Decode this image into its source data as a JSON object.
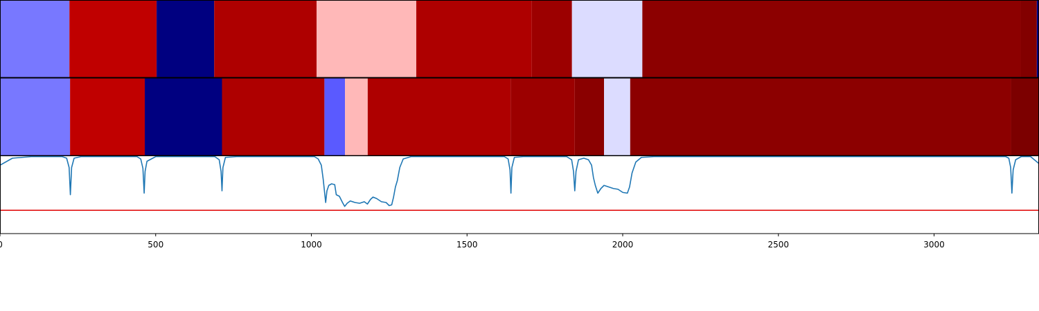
{
  "chart_data": [
    {
      "type": "heatmap",
      "name": "segmentation-track-1",
      "segments": [
        {
          "start": 0,
          "end": 223,
          "color": "#7878ff"
        },
        {
          "start": 223,
          "end": 503,
          "color": "#c00000"
        },
        {
          "start": 503,
          "end": 688,
          "color": "#000080"
        },
        {
          "start": 688,
          "end": 1017,
          "color": "#ae0000"
        },
        {
          "start": 1017,
          "end": 1337,
          "color": "#ffb8b8"
        },
        {
          "start": 1337,
          "end": 1708,
          "color": "#ae0000"
        },
        {
          "start": 1708,
          "end": 1837,
          "color": "#9c0000"
        },
        {
          "start": 1837,
          "end": 2063,
          "color": "#dcdcff"
        },
        {
          "start": 2063,
          "end": 3278,
          "color": "#8c0000"
        },
        {
          "start": 3278,
          "end": 3330,
          "color": "#820000"
        },
        {
          "start": 3330,
          "end": 3337,
          "color": "#000080"
        }
      ]
    },
    {
      "type": "heatmap",
      "name": "segmentation-track-2",
      "segments": [
        {
          "start": 0,
          "end": 225,
          "color": "#7878ff"
        },
        {
          "start": 225,
          "end": 465,
          "color": "#c00000"
        },
        {
          "start": 465,
          "end": 713,
          "color": "#000080"
        },
        {
          "start": 713,
          "end": 1042,
          "color": "#ae0000"
        },
        {
          "start": 1042,
          "end": 1108,
          "color": "#5a5aff"
        },
        {
          "start": 1108,
          "end": 1181,
          "color": "#ffb8b8"
        },
        {
          "start": 1181,
          "end": 1640,
          "color": "#ae0000"
        },
        {
          "start": 1640,
          "end": 1846,
          "color": "#9c0000"
        },
        {
          "start": 1846,
          "end": 1940,
          "color": "#8a0000"
        },
        {
          "start": 1940,
          "end": 2024,
          "color": "#dcdcff"
        },
        {
          "start": 2024,
          "end": 3247,
          "color": "#8c0000"
        },
        {
          "start": 3247,
          "end": 3337,
          "color": "#7c0000"
        }
      ]
    },
    {
      "type": "line",
      "name": "probability-track",
      "ylim": [
        0,
        1
      ],
      "threshold": 0.3,
      "threshold_color": "#e00000",
      "line_color": "#1f77b4",
      "points": [
        [
          0,
          0.88
        ],
        [
          40,
          0.97
        ],
        [
          100,
          0.99
        ],
        [
          200,
          0.99
        ],
        [
          214,
          0.97
        ],
        [
          222,
          0.85
        ],
        [
          226,
          0.5
        ],
        [
          230,
          0.85
        ],
        [
          238,
          0.97
        ],
        [
          260,
          0.99
        ],
        [
          440,
          0.99
        ],
        [
          452,
          0.96
        ],
        [
          459,
          0.84
        ],
        [
          463,
          0.52
        ],
        [
          466,
          0.8
        ],
        [
          472,
          0.93
        ],
        [
          500,
          0.99
        ],
        [
          690,
          0.99
        ],
        [
          704,
          0.95
        ],
        [
          710,
          0.8
        ],
        [
          713,
          0.55
        ],
        [
          716,
          0.85
        ],
        [
          724,
          0.98
        ],
        [
          760,
          0.99
        ],
        [
          1010,
          0.99
        ],
        [
          1022,
          0.96
        ],
        [
          1032,
          0.88
        ],
        [
          1038,
          0.7
        ],
        [
          1042,
          0.55
        ],
        [
          1046,
          0.4
        ],
        [
          1050,
          0.55
        ],
        [
          1056,
          0.62
        ],
        [
          1065,
          0.64
        ],
        [
          1075,
          0.63
        ],
        [
          1080,
          0.5
        ],
        [
          1090,
          0.48
        ],
        [
          1100,
          0.4
        ],
        [
          1107,
          0.35
        ],
        [
          1115,
          0.39
        ],
        [
          1125,
          0.42
        ],
        [
          1140,
          0.4
        ],
        [
          1155,
          0.39
        ],
        [
          1170,
          0.41
        ],
        [
          1180,
          0.38
        ],
        [
          1190,
          0.44
        ],
        [
          1198,
          0.47
        ],
        [
          1210,
          0.45
        ],
        [
          1225,
          0.41
        ],
        [
          1240,
          0.4
        ],
        [
          1250,
          0.36
        ],
        [
          1258,
          0.37
        ],
        [
          1264,
          0.47
        ],
        [
          1270,
          0.6
        ],
        [
          1276,
          0.68
        ],
        [
          1284,
          0.85
        ],
        [
          1295,
          0.96
        ],
        [
          1320,
          0.99
        ],
        [
          1620,
          0.99
        ],
        [
          1632,
          0.96
        ],
        [
          1638,
          0.82
        ],
        [
          1641,
          0.52
        ],
        [
          1644,
          0.85
        ],
        [
          1652,
          0.98
        ],
        [
          1680,
          0.99
        ],
        [
          1820,
          0.99
        ],
        [
          1836,
          0.95
        ],
        [
          1842,
          0.8
        ],
        [
          1846,
          0.55
        ],
        [
          1850,
          0.8
        ],
        [
          1858,
          0.95
        ],
        [
          1875,
          0.97
        ],
        [
          1890,
          0.95
        ],
        [
          1900,
          0.88
        ],
        [
          1906,
          0.72
        ],
        [
          1912,
          0.62
        ],
        [
          1920,
          0.52
        ],
        [
          1930,
          0.58
        ],
        [
          1940,
          0.62
        ],
        [
          1955,
          0.6
        ],
        [
          1970,
          0.58
        ],
        [
          1985,
          0.57
        ],
        [
          2000,
          0.53
        ],
        [
          2015,
          0.52
        ],
        [
          2022,
          0.6
        ],
        [
          2030,
          0.78
        ],
        [
          2042,
          0.92
        ],
        [
          2060,
          0.98
        ],
        [
          2100,
          0.99
        ],
        [
          3230,
          0.99
        ],
        [
          3240,
          0.97
        ],
        [
          3246,
          0.85
        ],
        [
          3250,
          0.52
        ],
        [
          3254,
          0.82
        ],
        [
          3262,
          0.95
        ],
        [
          3280,
          0.99
        ],
        [
          3310,
          0.99
        ],
        [
          3337,
          0.9
        ]
      ]
    }
  ],
  "x_axis": {
    "xlim": [
      0,
      3337
    ],
    "ticks": [
      {
        "value": 0,
        "label": "0"
      },
      {
        "value": 500,
        "label": "500"
      },
      {
        "value": 1000,
        "label": "1000"
      },
      {
        "value": 1500,
        "label": "1500"
      },
      {
        "value": 2000,
        "label": "2000"
      },
      {
        "value": 2500,
        "label": "2500"
      },
      {
        "value": 3000,
        "label": "3000"
      }
    ]
  }
}
